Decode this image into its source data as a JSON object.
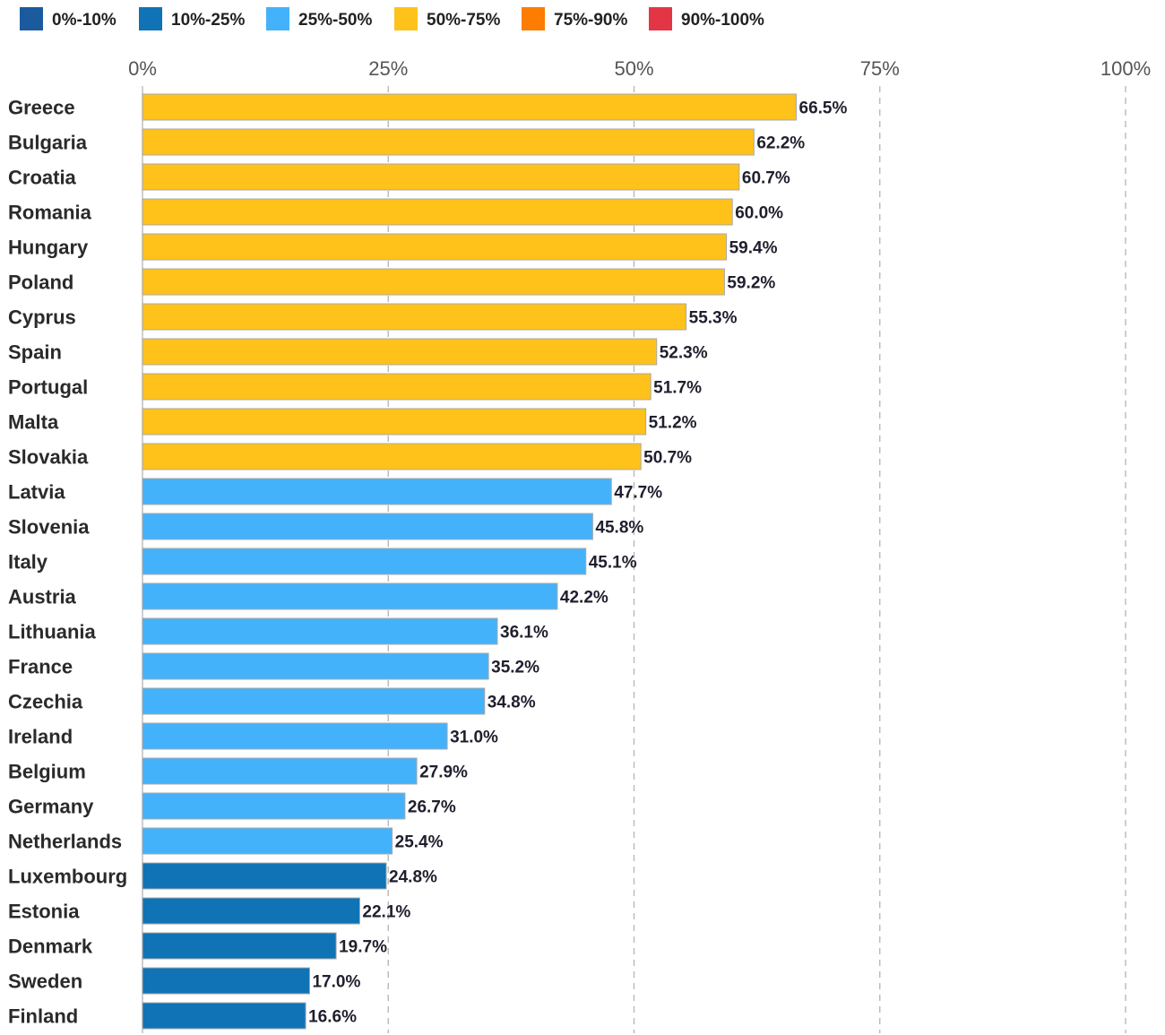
{
  "chart_data": {
    "type": "bar",
    "orientation": "horizontal",
    "title": "",
    "xlabel": "",
    "ylabel": "",
    "xlim": [
      0,
      100
    ],
    "x_ticks": [
      0,
      25,
      50,
      75,
      100
    ],
    "x_tick_labels": [
      "0%",
      "25%",
      "50%",
      "75%",
      "100%"
    ],
    "grid": "vertical dashed",
    "legend_position": "top-left",
    "legend": [
      {
        "label": "0%-10%",
        "color": "#1c5aa0"
      },
      {
        "label": "10%-25%",
        "color": "#0f73b6"
      },
      {
        "label": "25%-50%",
        "color": "#44b2fb"
      },
      {
        "label": "50%-75%",
        "color": "#fec21a"
      },
      {
        "label": "75%-90%",
        "color": "#fd7c02"
      },
      {
        "label": "90%-100%",
        "color": "#e43546"
      }
    ],
    "categories": [
      "Greece",
      "Bulgaria",
      "Croatia",
      "Romania",
      "Hungary",
      "Poland",
      "Cyprus",
      "Spain",
      "Portugal",
      "Malta",
      "Slovakia",
      "Latvia",
      "Slovenia",
      "Italy",
      "Austria",
      "Lithuania",
      "France",
      "Czechia",
      "Ireland",
      "Belgium",
      "Germany",
      "Netherlands",
      "Luxembourg",
      "Estonia",
      "Denmark",
      "Sweden",
      "Finland"
    ],
    "values": [
      66.5,
      62.2,
      60.7,
      60.0,
      59.4,
      59.2,
      55.3,
      52.3,
      51.7,
      51.2,
      50.7,
      47.7,
      45.8,
      45.1,
      42.2,
      36.1,
      35.2,
      34.8,
      31.0,
      27.9,
      26.7,
      25.4,
      24.8,
      22.1,
      19.7,
      17.0,
      16.6
    ],
    "value_labels": [
      "66.5%",
      "62.2%",
      "60.7%",
      "60.0%",
      "59.4%",
      "59.2%",
      "55.3%",
      "52.3%",
      "51.7%",
      "51.2%",
      "50.7%",
      "47.7%",
      "45.8%",
      "45.1%",
      "42.2%",
      "36.1%",
      "35.2%",
      "34.8%",
      "31.0%",
      "27.9%",
      "26.7%",
      "25.4%",
      "24.8%",
      "22.1%",
      "19.7%",
      "17.0%",
      "16.6%"
    ]
  }
}
